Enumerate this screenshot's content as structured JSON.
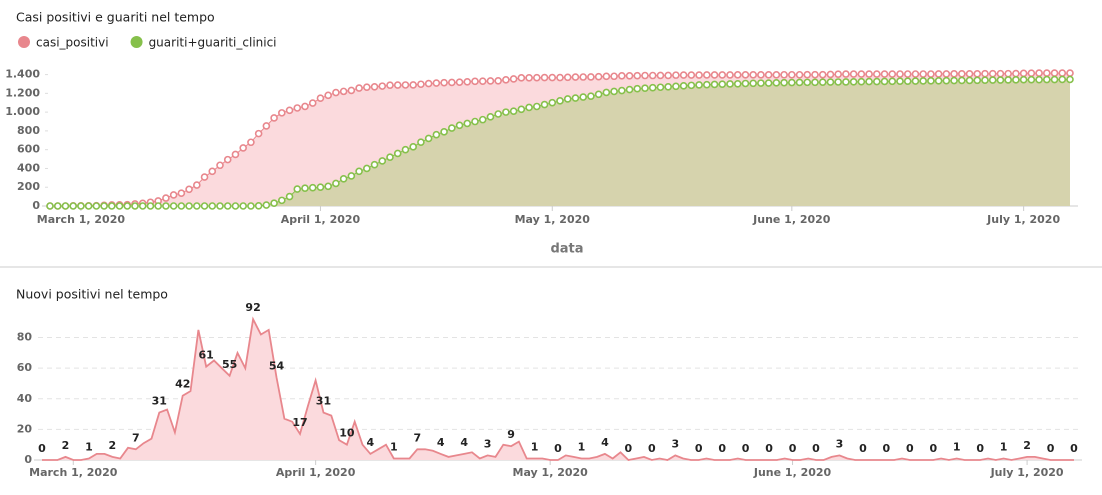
{
  "chart_data": [
    {
      "type": "line",
      "title": "Casi positivi e guariti nel tempo",
      "x_label": "data",
      "area": true,
      "markers": true,
      "grid": false,
      "legend": "top-left",
      "x": [
        "2020-02-26",
        "2020-02-27",
        "2020-02-28",
        "2020-02-29",
        "2020-03-01",
        "2020-03-02",
        "2020-03-03",
        "2020-03-04",
        "2020-03-05",
        "2020-03-06",
        "2020-03-07",
        "2020-03-08",
        "2020-03-09",
        "2020-03-10",
        "2020-03-11",
        "2020-03-12",
        "2020-03-13",
        "2020-03-14",
        "2020-03-15",
        "2020-03-16",
        "2020-03-17",
        "2020-03-18",
        "2020-03-19",
        "2020-03-20",
        "2020-03-21",
        "2020-03-22",
        "2020-03-23",
        "2020-03-24",
        "2020-03-25",
        "2020-03-26",
        "2020-03-27",
        "2020-03-28",
        "2020-03-29",
        "2020-03-30",
        "2020-03-31",
        "2020-04-01",
        "2020-04-02",
        "2020-04-03",
        "2020-04-04",
        "2020-04-05",
        "2020-04-06",
        "2020-04-07",
        "2020-04-08",
        "2020-04-09",
        "2020-04-10",
        "2020-04-11",
        "2020-04-12",
        "2020-04-13",
        "2020-04-14",
        "2020-04-15",
        "2020-04-16",
        "2020-04-17",
        "2020-04-18",
        "2020-04-19",
        "2020-04-20",
        "2020-04-21",
        "2020-04-22",
        "2020-04-23",
        "2020-04-24",
        "2020-04-25",
        "2020-04-26",
        "2020-04-27",
        "2020-04-28",
        "2020-04-29",
        "2020-04-30",
        "2020-05-01",
        "2020-05-02",
        "2020-05-03",
        "2020-05-04",
        "2020-05-05",
        "2020-05-06",
        "2020-05-07",
        "2020-05-08",
        "2020-05-09",
        "2020-05-10",
        "2020-05-11",
        "2020-05-12",
        "2020-05-13",
        "2020-05-14",
        "2020-05-15",
        "2020-05-16",
        "2020-05-17",
        "2020-05-18",
        "2020-05-19",
        "2020-05-20",
        "2020-05-21",
        "2020-05-22",
        "2020-05-23",
        "2020-05-24",
        "2020-05-25",
        "2020-05-26",
        "2020-05-27",
        "2020-05-28",
        "2020-05-29",
        "2020-05-30",
        "2020-05-31",
        "2020-06-01",
        "2020-06-02",
        "2020-06-03",
        "2020-06-04",
        "2020-06-05",
        "2020-06-06",
        "2020-06-07",
        "2020-06-08",
        "2020-06-09",
        "2020-06-10",
        "2020-06-11",
        "2020-06-12",
        "2020-06-13",
        "2020-06-14",
        "2020-06-15",
        "2020-06-16",
        "2020-06-17",
        "2020-06-18",
        "2020-06-19",
        "2020-06-20",
        "2020-06-21",
        "2020-06-22",
        "2020-06-23",
        "2020-06-24",
        "2020-06-25",
        "2020-06-26",
        "2020-06-27",
        "2020-06-28",
        "2020-06-29",
        "2020-06-30",
        "2020-07-01",
        "2020-07-02",
        "2020-07-03",
        "2020-07-04",
        "2020-07-05",
        "2020-07-06",
        "2020-07-07"
      ],
      "xlim": [
        "2020-02-26",
        "2020-07-07"
      ],
      "xticks": [
        {
          "value": "2020-03-01",
          "label": "March 1, 2020"
        },
        {
          "value": "2020-04-01",
          "label": "April 1, 2020"
        },
        {
          "value": "2020-05-01",
          "label": "May 1, 2020"
        },
        {
          "value": "2020-06-01",
          "label": "June 1, 2020"
        },
        {
          "value": "2020-07-01",
          "label": "July 1, 2020"
        }
      ],
      "ylim": [
        0,
        1470
      ],
      "yticks": [
        0,
        200,
        400,
        600,
        800,
        {
          "value": 1000,
          "label": "1.000"
        },
        {
          "value": 1200,
          "label": "1.200"
        },
        {
          "value": 1400,
          "label": "1.400"
        }
      ],
      "series": [
        {
          "name": "casi_positivi",
          "color": "#e8878d",
          "fill": "#fbdadd",
          "values": [
            0,
            0,
            0,
            2,
            2,
            2,
            3,
            7,
            11,
            13,
            14,
            22,
            29,
            40,
            54,
            85,
            118,
            136,
            178,
            223,
            308,
            369,
            434,
            494,
            549,
            619,
            679,
            771,
            853,
            938,
            992,
            1019,
            1044,
            1061,
            1096,
            1148,
            1179,
            1208,
            1221,
            1231,
            1256,
            1266,
            1270,
            1277,
            1287,
            1288,
            1289,
            1290,
            1297,
            1304,
            1310,
            1314,
            1316,
            1319,
            1323,
            1328,
            1329,
            1332,
            1334,
            1344,
            1353,
            1365,
            1366,
            1367,
            1368,
            1368,
            1368,
            1371,
            1373,
            1374,
            1375,
            1377,
            1381,
            1382,
            1387,
            1387,
            1388,
            1390,
            1390,
            1391,
            1391,
            1394,
            1395,
            1395,
            1395,
            1396,
            1396,
            1396,
            1396,
            1397,
            1397,
            1397,
            1397,
            1397,
            1397,
            1398,
            1398,
            1398,
            1399,
            1399,
            1399,
            1401,
            1404,
            1405,
            1405,
            1405,
            1405,
            1405,
            1405,
            1405,
            1406,
            1406,
            1406,
            1406,
            1406,
            1407,
            1407,
            1408,
            1408,
            1408,
            1408,
            1409,
            1409,
            1410,
            1410,
            1411,
            1413,
            1415,
            1416,
            1416,
            1416,
            1416,
            1416
          ]
        },
        {
          "name": "guariti+guariti_clinici",
          "color": "#86c04b",
          "fill": "#d6d3ad",
          "values": [
            0,
            0,
            0,
            0,
            0,
            0,
            0,
            0,
            0,
            0,
            0,
            0,
            0,
            0,
            0,
            0,
            0,
            0,
            0,
            0,
            0,
            0,
            0,
            0,
            0,
            0,
            0,
            2,
            10,
            30,
            60,
            100,
            180,
            190,
            195,
            200,
            210,
            240,
            290,
            320,
            370,
            400,
            440,
            480,
            520,
            560,
            600,
            630,
            680,
            720,
            760,
            790,
            830,
            860,
            880,
            900,
            920,
            950,
            980,
            1000,
            1010,
            1030,
            1050,
            1060,
            1080,
            1100,
            1120,
            1140,
            1150,
            1160,
            1170,
            1190,
            1210,
            1220,
            1230,
            1240,
            1250,
            1255,
            1260,
            1265,
            1270,
            1275,
            1280,
            1285,
            1290,
            1292,
            1295,
            1298,
            1300,
            1302,
            1305,
            1307,
            1309,
            1310,
            1312,
            1314,
            1315,
            1316,
            1317,
            1318,
            1319,
            1320,
            1321,
            1322,
            1323,
            1324,
            1325,
            1326,
            1327,
            1328,
            1329,
            1330,
            1331,
            1332,
            1333,
            1334,
            1335,
            1336,
            1337,
            1338,
            1339,
            1340,
            1341,
            1342,
            1343,
            1344,
            1345,
            1346,
            1346,
            1347,
            1347,
            1348,
            1348
          ]
        }
      ]
    },
    {
      "type": "line",
      "title": "Nuovi positivi nel tempo",
      "area": true,
      "markers": false,
      "grid": true,
      "data_labels": true,
      "color": "#e8878d",
      "fill": "#fbdadd",
      "x": [
        "2020-02-26",
        "2020-02-27",
        "2020-02-28",
        "2020-02-29",
        "2020-03-01",
        "2020-03-02",
        "2020-03-03",
        "2020-03-04",
        "2020-03-05",
        "2020-03-06",
        "2020-03-07",
        "2020-03-08",
        "2020-03-09",
        "2020-03-10",
        "2020-03-11",
        "2020-03-12",
        "2020-03-13",
        "2020-03-14",
        "2020-03-15",
        "2020-03-16",
        "2020-03-17",
        "2020-03-18",
        "2020-03-19",
        "2020-03-20",
        "2020-03-21",
        "2020-03-22",
        "2020-03-23",
        "2020-03-24",
        "2020-03-25",
        "2020-03-26",
        "2020-03-27",
        "2020-03-28",
        "2020-03-29",
        "2020-03-30",
        "2020-03-31",
        "2020-04-01",
        "2020-04-02",
        "2020-04-03",
        "2020-04-04",
        "2020-04-05",
        "2020-04-06",
        "2020-04-07",
        "2020-04-08",
        "2020-04-09",
        "2020-04-10",
        "2020-04-11",
        "2020-04-12",
        "2020-04-13",
        "2020-04-14",
        "2020-04-15",
        "2020-04-16",
        "2020-04-17",
        "2020-04-18",
        "2020-04-19",
        "2020-04-20",
        "2020-04-21",
        "2020-04-22",
        "2020-04-23",
        "2020-04-24",
        "2020-04-25",
        "2020-04-26",
        "2020-04-27",
        "2020-04-28",
        "2020-04-29",
        "2020-04-30",
        "2020-05-01",
        "2020-05-02",
        "2020-05-03",
        "2020-05-04",
        "2020-05-05",
        "2020-05-06",
        "2020-05-07",
        "2020-05-08",
        "2020-05-09",
        "2020-05-10",
        "2020-05-11",
        "2020-05-12",
        "2020-05-13",
        "2020-05-14",
        "2020-05-15",
        "2020-05-16",
        "2020-05-17",
        "2020-05-18",
        "2020-05-19",
        "2020-05-20",
        "2020-05-21",
        "2020-05-22",
        "2020-05-23",
        "2020-05-24",
        "2020-05-25",
        "2020-05-26",
        "2020-05-27",
        "2020-05-28",
        "2020-05-29",
        "2020-05-30",
        "2020-05-31",
        "2020-06-01",
        "2020-06-02",
        "2020-06-03",
        "2020-06-04",
        "2020-06-05",
        "2020-06-06",
        "2020-06-07",
        "2020-06-08",
        "2020-06-09",
        "2020-06-10",
        "2020-06-11",
        "2020-06-12",
        "2020-06-13",
        "2020-06-14",
        "2020-06-15",
        "2020-06-16",
        "2020-06-17",
        "2020-06-18",
        "2020-06-19",
        "2020-06-20",
        "2020-06-21",
        "2020-06-22",
        "2020-06-23",
        "2020-06-24",
        "2020-06-25",
        "2020-06-26",
        "2020-06-27",
        "2020-06-28",
        "2020-06-29",
        "2020-06-30",
        "2020-07-01",
        "2020-07-02",
        "2020-07-03",
        "2020-07-04",
        "2020-07-05",
        "2020-07-06",
        "2020-07-07"
      ],
      "xlim": [
        "2020-02-26",
        "2020-07-07"
      ],
      "xticks": [
        {
          "value": "2020-03-01",
          "label": "March 1, 2020"
        },
        {
          "value": "2020-04-01",
          "label": "April 1, 2020"
        },
        {
          "value": "2020-05-01",
          "label": "May 1, 2020"
        },
        {
          "value": "2020-06-01",
          "label": "June 1, 2020"
        },
        {
          "value": "2020-07-01",
          "label": "July 1, 2020"
        }
      ],
      "ylim": [
        0,
        98
      ],
      "yticks": [
        0,
        20,
        40,
        60,
        80
      ],
      "values": [
        0,
        0,
        0,
        2,
        0,
        0,
        1,
        4,
        4,
        2,
        1,
        8,
        7,
        11,
        14,
        31,
        33,
        18,
        42,
        45,
        85,
        61,
        65,
        60,
        55,
        70,
        60,
        92,
        82,
        85,
        54,
        27,
        25,
        17,
        35,
        52,
        31,
        29,
        13,
        10,
        25,
        10,
        4,
        7,
        10,
        1,
        1,
        1,
        7,
        7,
        6,
        4,
        2,
        3,
        4,
        5,
        1,
        3,
        2,
        10,
        9,
        12,
        1,
        1,
        1,
        0,
        0,
        3,
        2,
        1,
        1,
        2,
        4,
        1,
        5,
        0,
        1,
        2,
        0,
        1,
        0,
        3,
        1,
        0,
        0,
        1,
        0,
        0,
        0,
        1,
        0,
        0,
        0,
        0,
        0,
        1,
        0,
        0,
        1,
        0,
        0,
        2,
        3,
        1,
        0,
        0,
        0,
        0,
        0,
        0,
        1,
        0,
        0,
        0,
        0,
        1,
        0,
        1,
        0,
        0,
        0,
        1,
        0,
        1,
        0,
        1,
        2,
        2,
        1,
        0,
        0,
        0,
        0
      ]
    }
  ]
}
